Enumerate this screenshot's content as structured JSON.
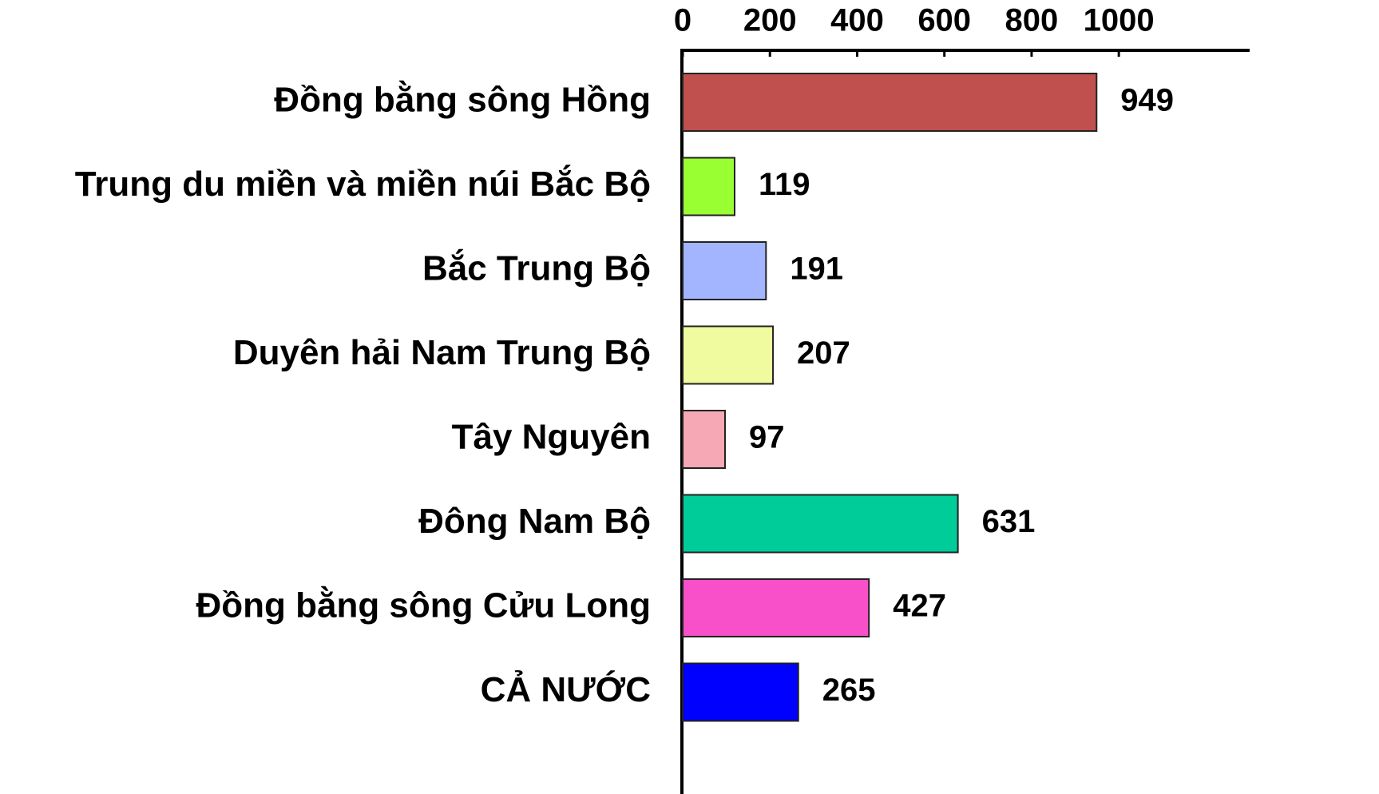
{
  "chart_data": {
    "type": "bar",
    "categories": [
      "Đồng bằng sông Hồng",
      "Trung du miền và miền núi Bắc Bộ",
      "Bắc Trung Bộ",
      "Duyên hải Nam Trung Bộ",
      "Tây Nguyên",
      "Đông Nam Bộ",
      "Đồng bằng sông Cửu Long",
      "CẢ NƯỚC"
    ],
    "values": [
      949,
      119,
      191,
      207,
      97,
      631,
      427,
      265
    ],
    "colors": [
      "#c0504d",
      "#99ff33",
      "#a3b5ff",
      "#f0fa9e",
      "#f7a8b5",
      "#00cc99",
      "#f750c8",
      "#0000ff"
    ],
    "xlim": [
      0,
      1300
    ],
    "xticks": [
      0,
      200,
      400,
      600,
      800,
      1000
    ]
  }
}
